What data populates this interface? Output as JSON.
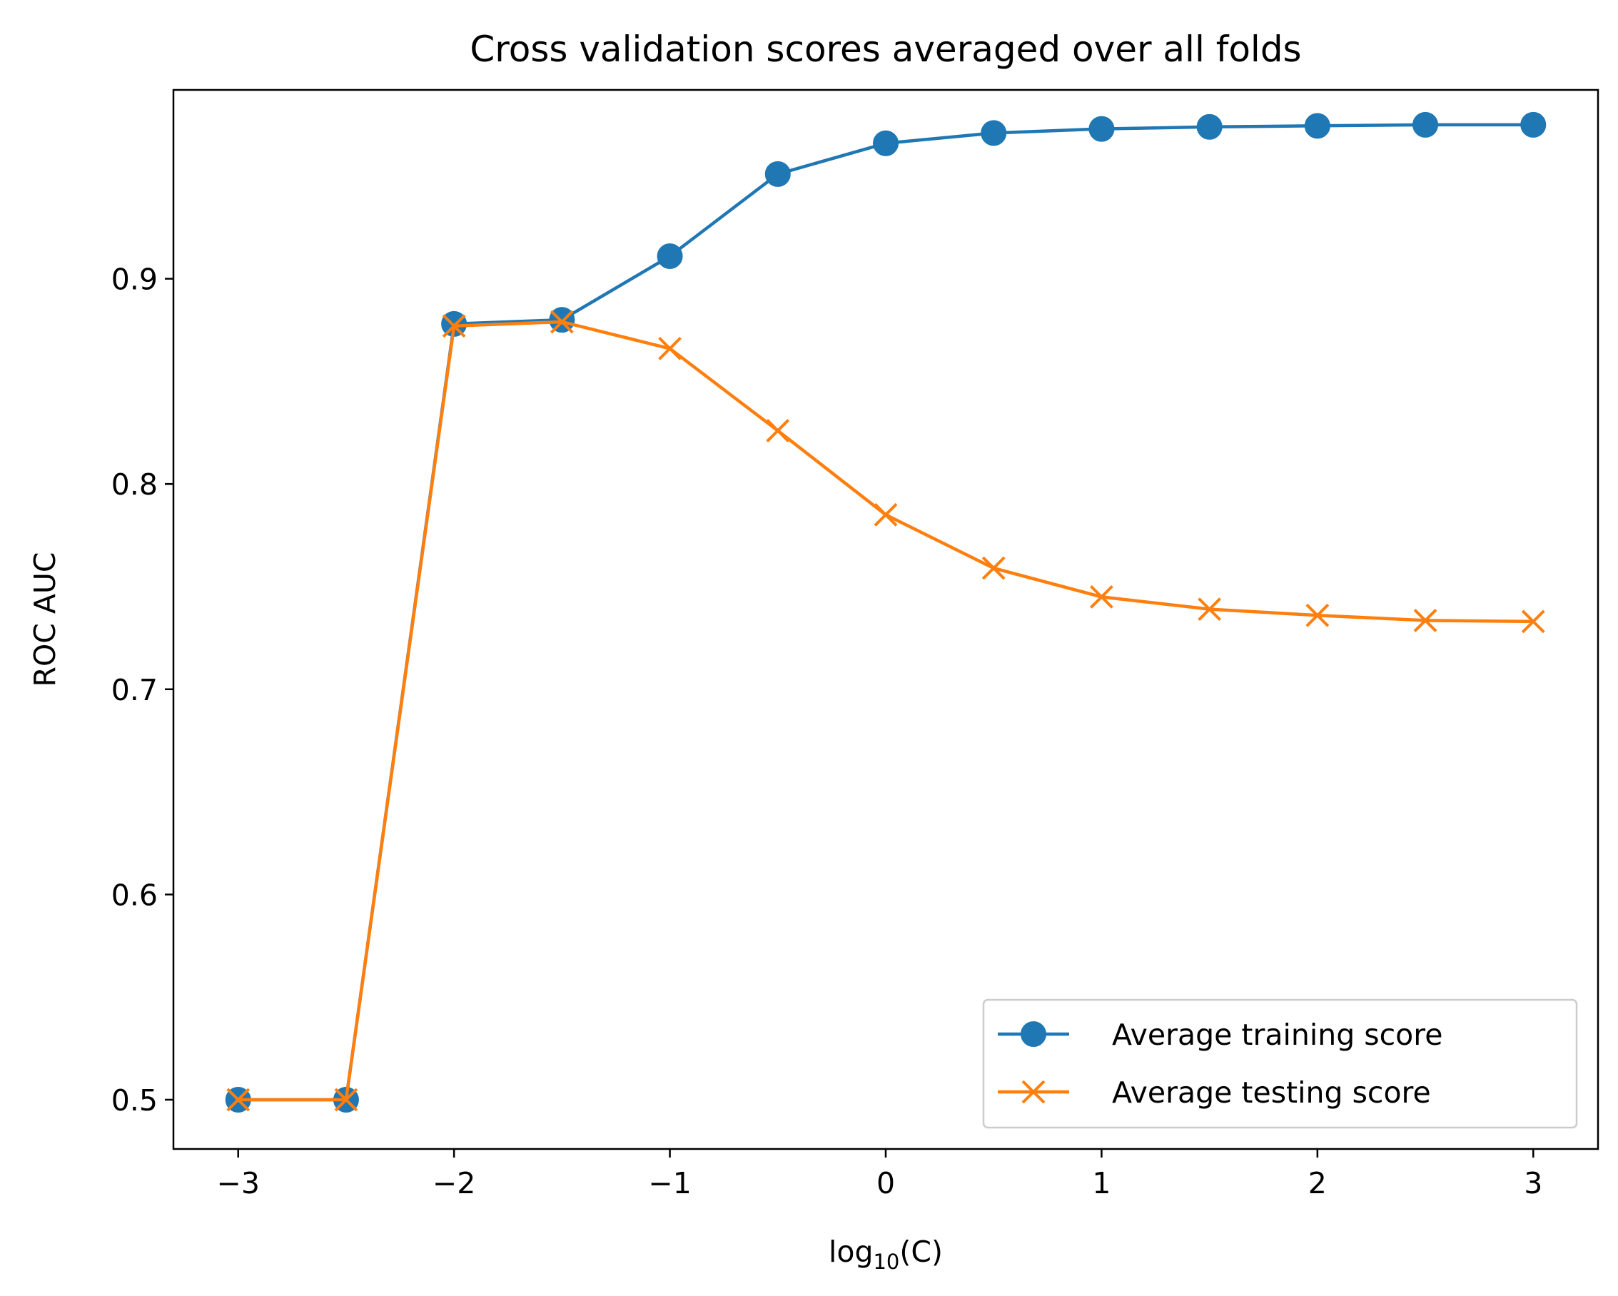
{
  "chart_data": {
    "type": "line",
    "title": "Cross validation scores averaged over all folds",
    "xlabel": {
      "base": "log",
      "subscript": "10",
      "suffix": "(C)"
    },
    "ylabel": "ROC AUC",
    "xlim": [
      -3.3,
      3.3
    ],
    "ylim": [
      0.476,
      0.992
    ],
    "x": [
      -3,
      -2.5,
      -2,
      -1.5,
      -1,
      -0.5,
      0,
      0.5,
      1,
      1.5,
      2,
      2.5,
      3
    ],
    "xticks": [
      -3,
      -2,
      -1,
      0,
      1,
      2,
      3
    ],
    "xtick_labels": [
      "−3",
      "−2",
      "−1",
      "0",
      "1",
      "2",
      "3"
    ],
    "yticks": [
      0.5,
      0.6,
      0.7,
      0.8,
      0.9
    ],
    "ytick_labels": [
      "0.5",
      "0.6",
      "0.7",
      "0.8",
      "0.9"
    ],
    "grid": false,
    "legend_position": "lower-right",
    "series": [
      {
        "name": "Average training score",
        "marker": "circle",
        "color": "#1f77b4",
        "values": [
          0.5,
          0.5,
          0.878,
          0.88,
          0.911,
          0.951,
          0.966,
          0.971,
          0.973,
          0.974,
          0.9745,
          0.975,
          0.975
        ]
      },
      {
        "name": "Average testing score",
        "marker": "x",
        "color": "#ff7f0e",
        "values": [
          0.5,
          0.5,
          0.877,
          0.879,
          0.866,
          0.826,
          0.785,
          0.759,
          0.745,
          0.739,
          0.736,
          0.7335,
          0.733
        ]
      }
    ]
  }
}
